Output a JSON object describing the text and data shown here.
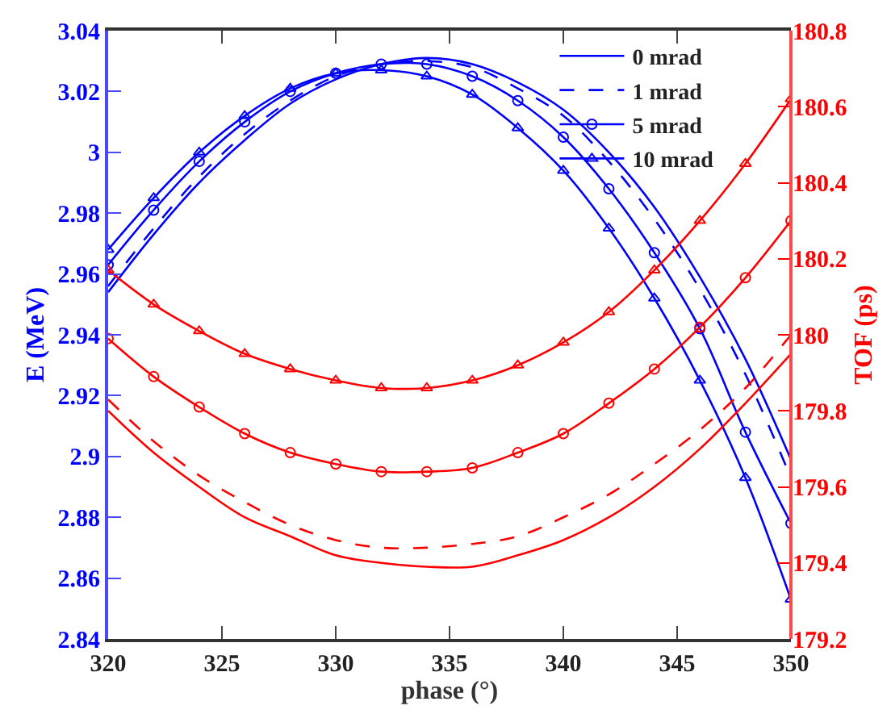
{
  "chart_data": {
    "type": "line",
    "xlabel": "phase (°)",
    "ylabel": "E (MeV)",
    "y2label": "TOF (ps)",
    "x": [
      320,
      322,
      324,
      326,
      328,
      330,
      332,
      334,
      336,
      338,
      340,
      342,
      344,
      346,
      348,
      350
    ],
    "xlim": [
      320,
      350
    ],
    "xticks": [
      320,
      325,
      330,
      335,
      340,
      345,
      350
    ],
    "ylim": [
      2.84,
      3.04
    ],
    "yticks": [
      2.84,
      2.86,
      2.88,
      2.9,
      2.92,
      2.94,
      2.96,
      2.98,
      3,
      3.02,
      3.04
    ],
    "y2lim": [
      179.2,
      180.8
    ],
    "y2ticks": [
      179.2,
      179.4,
      179.6,
      179.8,
      180,
      180.2,
      180.4,
      180.6,
      180.8
    ],
    "legend": "top right",
    "series": [
      {
        "name": "0 mrad",
        "color": "#0000ff",
        "marker": "none",
        "line_style": "solid",
        "values": [
          2.954,
          2.973,
          2.99,
          3.004,
          3.016,
          3.024,
          3.029,
          3.031,
          3.029,
          3.023,
          3.014,
          3.0,
          2.982,
          2.959,
          2.932,
          2.899
        ]
      },
      {
        "name": "1 mrad",
        "color": "#0000ff",
        "marker": "none",
        "line_style": "dashed",
        "values": [
          2.956,
          2.975,
          2.992,
          3.006,
          3.017,
          3.025,
          3.029,
          3.03,
          3.028,
          3.021,
          3.012,
          2.997,
          2.978,
          2.955,
          2.927,
          2.893
        ]
      },
      {
        "name": "5 mrad",
        "color": "#0000ff",
        "marker": "circle",
        "line_style": "solid",
        "values": [
          2.963,
          2.981,
          2.997,
          3.01,
          3.02,
          3.026,
          3.029,
          3.029,
          3.025,
          3.017,
          3.005,
          2.988,
          2.967,
          2.942,
          2.908,
          2.878
        ]
      },
      {
        "name": "10 mrad",
        "color": "#0000ff",
        "marker": "triangle",
        "line_style": "solid",
        "values": [
          2.968,
          2.985,
          3.0,
          3.012,
          3.021,
          3.026,
          3.027,
          3.025,
          3.019,
          3.008,
          2.994,
          2.975,
          2.952,
          2.925,
          2.893,
          2.853
        ]
      },
      {
        "color": "#ff0000",
        "axis": "y2",
        "marker": "none",
        "line_style": "solid",
        "values": [
          179.8,
          179.69,
          179.6,
          179.52,
          179.47,
          179.42,
          179.4,
          179.39,
          179.39,
          179.42,
          179.46,
          179.52,
          179.6,
          179.7,
          179.82,
          179.95
        ]
      },
      {
        "color": "#ff0000",
        "axis": "y2",
        "marker": "none",
        "line_style": "dashed",
        "values": [
          179.83,
          179.72,
          179.63,
          179.56,
          179.5,
          179.46,
          179.44,
          179.44,
          179.45,
          179.47,
          179.52,
          179.58,
          179.66,
          179.75,
          179.86,
          180.0
        ]
      },
      {
        "color": "#ff0000",
        "axis": "y2",
        "marker": "circle",
        "line_style": "solid",
        "values": [
          179.99,
          179.89,
          179.81,
          179.74,
          179.69,
          179.66,
          179.64,
          179.64,
          179.65,
          179.69,
          179.74,
          179.82,
          179.91,
          180.02,
          180.15,
          180.3
        ]
      },
      {
        "color": "#ff0000",
        "axis": "y2",
        "marker": "triangle",
        "line_style": "solid",
        "values": [
          180.17,
          180.08,
          180.01,
          179.95,
          179.91,
          179.88,
          179.86,
          179.86,
          179.88,
          179.92,
          179.98,
          180.06,
          180.17,
          180.3,
          180.45,
          180.62
        ]
      }
    ]
  }
}
